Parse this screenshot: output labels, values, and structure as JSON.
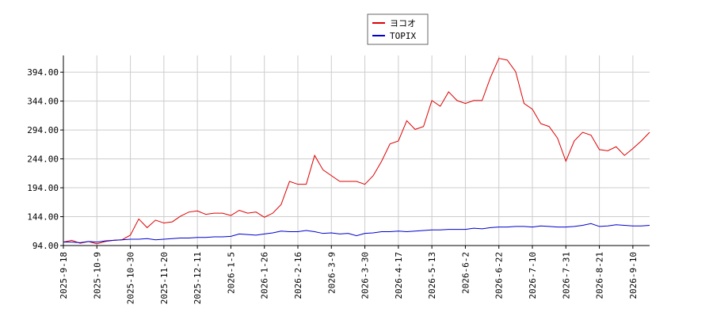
{
  "chart_data": {
    "type": "line",
    "categories": [
      "2025-9-18",
      null,
      null,
      null,
      "2025-10-9",
      null,
      null,
      null,
      "2025-10-30",
      null,
      null,
      null,
      "2025-11-20",
      null,
      null,
      null,
      "2025-12-11",
      null,
      null,
      null,
      "2026-1-5",
      null,
      null,
      null,
      "2026-1-26",
      null,
      null,
      null,
      "2026-2-16",
      null,
      null,
      null,
      "2026-3-9",
      null,
      null,
      null,
      "2026-3-30",
      null,
      null,
      null,
      "2026-4-17",
      null,
      null,
      null,
      "2026-5-13",
      null,
      null,
      null,
      "2026-6-2",
      null,
      null,
      null,
      "2026-6-22",
      null,
      null,
      null,
      "2026-7-10",
      null,
      null,
      null,
      "2026-7-31",
      null,
      null,
      null,
      "2026-8-21",
      null,
      null,
      null,
      "2026-9-10",
      null,
      null
    ],
    "series": [
      {
        "name": "ヨコオ",
        "color": "#dd0000",
        "values": [
          100,
          103,
          98,
          101,
          97,
          101,
          103,
          104,
          112,
          140,
          125,
          138,
          133,
          135,
          145,
          152,
          154,
          148,
          150,
          150,
          146,
          155,
          150,
          152,
          143,
          150,
          165,
          205,
          200,
          200,
          250,
          225,
          215,
          205,
          205,
          205,
          200,
          215,
          240,
          270,
          275,
          310,
          295,
          300,
          345,
          335,
          360,
          345,
          340,
          345,
          345,
          385,
          418,
          415,
          395,
          340,
          330,
          305,
          300,
          280,
          240,
          275,
          290,
          285,
          260,
          258,
          265,
          250,
          262,
          275,
          290
        ]
      },
      {
        "name": "TOPIX",
        "color": "#0000cc",
        "values": [
          100,
          100,
          99,
          101,
          100,
          102,
          103,
          104,
          105,
          105,
          106,
          104,
          105,
          106,
          107,
          107,
          108,
          108,
          109,
          109,
          110,
          114,
          113,
          112,
          114,
          116,
          119,
          118,
          118,
          120,
          118,
          115,
          116,
          114,
          115,
          111,
          115,
          116,
          118,
          118,
          119,
          118,
          119,
          120,
          121,
          121,
          122,
          122,
          122,
          124,
          123,
          125,
          126,
          126,
          127,
          127,
          126,
          128,
          127,
          126,
          126,
          127,
          129,
          132,
          127,
          128,
          130,
          129,
          128,
          128,
          129
        ]
      }
    ],
    "ylim": [
      94,
      423
    ],
    "yticks": [
      {
        "value": 94,
        "label": "94.00"
      },
      {
        "value": 144,
        "label": "144.00"
      },
      {
        "value": 194,
        "label": "194.00"
      },
      {
        "value": 244,
        "label": "244.00"
      },
      {
        "value": 294,
        "label": "294.00"
      },
      {
        "value": 344,
        "label": "344.00"
      },
      {
        "value": 394,
        "label": "394.00"
      }
    ],
    "grid": true,
    "legend": "top"
  }
}
